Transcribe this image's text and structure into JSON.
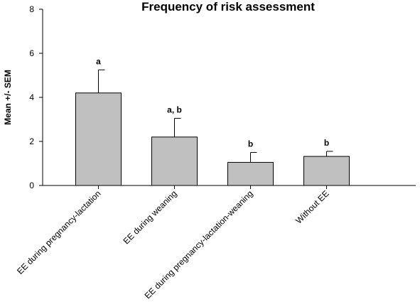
{
  "chart_data": {
    "type": "bar",
    "title": "Frequency of risk assessment",
    "xlabel": "",
    "ylabel": "Mean +/- SEM",
    "ylim": [
      0,
      8
    ],
    "yticks": [
      0,
      2,
      4,
      6,
      8
    ],
    "grid": false,
    "categories": [
      "EE during pregnancy-lactation",
      "EE during weaning",
      "EE during pregnancy-lactation-weaning",
      "Without EE"
    ],
    "values": [
      4.2,
      2.2,
      1.05,
      1.32
    ],
    "errors": [
      1.05,
      0.85,
      0.45,
      0.23
    ],
    "significance_labels": [
      "a",
      "a, b",
      "b",
      "b"
    ],
    "bar_color": "#c0c0c0"
  }
}
